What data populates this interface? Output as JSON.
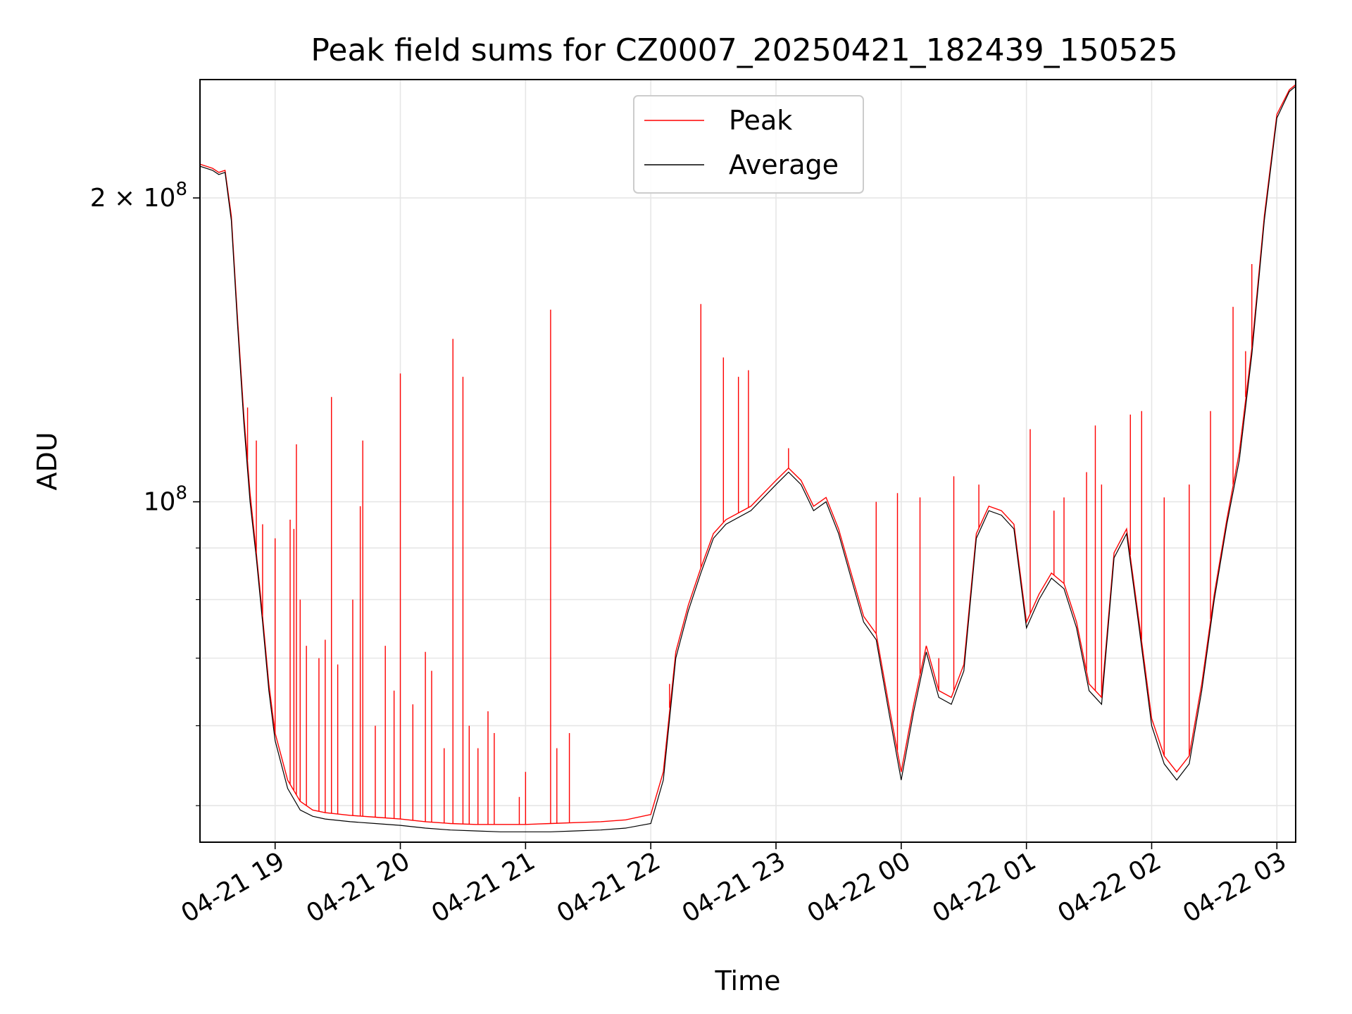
{
  "chart_data": {
    "type": "line",
    "title": "Peak field sums for CZ0007_20250421_182439_150525",
    "xlabel": "Time",
    "ylabel": "ADU",
    "yscale": "log",
    "ylim": [
      46000000,
      262000000
    ],
    "xlim_hours": [
      -0.6,
      8.15
    ],
    "x_origin": "04-21 19:00",
    "grid": true,
    "legend_position": "top-center",
    "x_ticks": [
      {
        "h": 0,
        "label": "04-21 19"
      },
      {
        "h": 1,
        "label": "04-21 20"
      },
      {
        "h": 2,
        "label": "04-21 21"
      },
      {
        "h": 3,
        "label": "04-21 22"
      },
      {
        "h": 4,
        "label": "04-21 23"
      },
      {
        "h": 5,
        "label": "04-22 00"
      },
      {
        "h": 6,
        "label": "04-22 01"
      },
      {
        "h": 7,
        "label": "04-22 02"
      },
      {
        "h": 8,
        "label": "04-22 03"
      }
    ],
    "y_ticks": [
      {
        "value": 100000000,
        "base": "10",
        "exp": "8"
      },
      {
        "value": 200000000,
        "base": "2 × 10",
        "exp": "8"
      }
    ],
    "y_minor_ticks": [
      50000000,
      60000000,
      70000000,
      80000000,
      90000000
    ],
    "series": [
      {
        "name": "Average",
        "color": "#000000",
        "x_hours": [
          -0.6,
          -0.5,
          -0.45,
          -0.4,
          -0.35,
          -0.3,
          -0.25,
          -0.2,
          -0.15,
          -0.1,
          -0.05,
          0,
          0.1,
          0.2,
          0.3,
          0.4,
          0.6,
          0.8,
          1.0,
          1.2,
          1.4,
          1.6,
          1.8,
          2.0,
          2.2,
          2.4,
          2.6,
          2.8,
          3.0,
          3.1,
          3.2,
          3.3,
          3.4,
          3.5,
          3.6,
          3.8,
          4.0,
          4.1,
          4.2,
          4.3,
          4.4,
          4.5,
          4.6,
          4.7,
          4.8,
          4.9,
          5.0,
          5.1,
          5.2,
          5.3,
          5.4,
          5.5,
          5.6,
          5.7,
          5.8,
          5.9,
          6.0,
          6.1,
          6.2,
          6.3,
          6.4,
          6.5,
          6.6,
          6.7,
          6.8,
          6.9,
          7.0,
          7.1,
          7.2,
          7.3,
          7.4,
          7.5,
          7.6,
          7.7,
          7.8,
          7.9,
          8.0,
          8.1,
          8.15
        ],
        "values": [
          215000000,
          213000000,
          211000000,
          212000000,
          190000000,
          150000000,
          120000000,
          100000000,
          88000000,
          76000000,
          65000000,
          58000000,
          52000000,
          49500000,
          48800000,
          48500000,
          48200000,
          48000000,
          47800000,
          47500000,
          47300000,
          47200000,
          47100000,
          47100000,
          47100000,
          47200000,
          47300000,
          47500000,
          48000000,
          53000000,
          70000000,
          78000000,
          85000000,
          92000000,
          95000000,
          98000000,
          104000000,
          107000000,
          104000000,
          98000000,
          100000000,
          93000000,
          84000000,
          76000000,
          73000000,
          62000000,
          53000000,
          62000000,
          71000000,
          64000000,
          63000000,
          68000000,
          92000000,
          98000000,
          97000000,
          94000000,
          75000000,
          80000000,
          84000000,
          82000000,
          75000000,
          65000000,
          63000000,
          88000000,
          93000000,
          75000000,
          60000000,
          55000000,
          53000000,
          55000000,
          65000000,
          80000000,
          95000000,
          110000000,
          140000000,
          190000000,
          240000000,
          255000000,
          258000000
        ]
      },
      {
        "name": "Peak",
        "color": "#ff0000",
        "x_hours": [
          -0.6,
          -0.5,
          -0.45,
          -0.4,
          -0.35,
          -0.3,
          -0.25,
          -0.2,
          -0.15,
          -0.1,
          -0.05,
          0,
          0.1,
          0.2,
          0.3,
          0.4,
          0.6,
          0.8,
          1.0,
          1.2,
          1.4,
          1.6,
          1.8,
          2.0,
          2.2,
          2.4,
          2.6,
          2.8,
          3.0,
          3.1,
          3.2,
          3.3,
          3.4,
          3.5,
          3.6,
          3.8,
          4.0,
          4.1,
          4.2,
          4.3,
          4.4,
          4.5,
          4.6,
          4.7,
          4.8,
          4.9,
          5.0,
          5.1,
          5.2,
          5.3,
          5.4,
          5.5,
          5.6,
          5.7,
          5.8,
          5.9,
          6.0,
          6.1,
          6.2,
          6.3,
          6.4,
          6.5,
          6.6,
          6.7,
          6.8,
          6.9,
          7.0,
          7.1,
          7.2,
          7.3,
          7.4,
          7.5,
          7.6,
          7.7,
          7.8,
          7.9,
          8.0,
          8.1,
          8.15
        ],
        "values": [
          216000000,
          214000000,
          212000000,
          213000000,
          192000000,
          152000000,
          122000000,
          102000000,
          89000000,
          77000000,
          66000000,
          59000000,
          53000000,
          50500000,
          49500000,
          49200000,
          48900000,
          48700000,
          48500000,
          48200000,
          48000000,
          47900000,
          47900000,
          47900000,
          48000000,
          48100000,
          48200000,
          48400000,
          49000000,
          54000000,
          71000000,
          79000000,
          86000000,
          93000000,
          96000000,
          99000000,
          105000000,
          108000000,
          105000000,
          99000000,
          101000000,
          94000000,
          85000000,
          77000000,
          74000000,
          63000000,
          54000000,
          63000000,
          72000000,
          65000000,
          64000000,
          69000000,
          93000000,
          99000000,
          98000000,
          95000000,
          76000000,
          81000000,
          85000000,
          83000000,
          76000000,
          66000000,
          64000000,
          89000000,
          94000000,
          76000000,
          61000000,
          56000000,
          54000000,
          56000000,
          66000000,
          81000000,
          96000000,
          112000000,
          142000000,
          192000000,
          242000000,
          256000000,
          259000000
        ],
        "spikes": [
          {
            "h": -0.22,
            "v": 124000000
          },
          {
            "h": -0.15,
            "v": 115000000
          },
          {
            "h": -0.1,
            "v": 95000000
          },
          {
            "h": 0.0,
            "v": 92000000
          },
          {
            "h": 0.12,
            "v": 96000000
          },
          {
            "h": 0.15,
            "v": 94000000
          },
          {
            "h": 0.17,
            "v": 114000000
          },
          {
            "h": 0.2,
            "v": 80000000
          },
          {
            "h": 0.25,
            "v": 72000000
          },
          {
            "h": 0.35,
            "v": 70000000
          },
          {
            "h": 0.4,
            "v": 73000000
          },
          {
            "h": 0.45,
            "v": 127000000
          },
          {
            "h": 0.5,
            "v": 69000000
          },
          {
            "h": 0.62,
            "v": 80000000
          },
          {
            "h": 0.68,
            "v": 99000000
          },
          {
            "h": 0.7,
            "v": 115000000
          },
          {
            "h": 0.8,
            "v": 60000000
          },
          {
            "h": 0.88,
            "v": 72000000
          },
          {
            "h": 0.95,
            "v": 65000000
          },
          {
            "h": 1.0,
            "v": 134000000
          },
          {
            "h": 1.1,
            "v": 63000000
          },
          {
            "h": 1.2,
            "v": 71000000
          },
          {
            "h": 1.25,
            "v": 68000000
          },
          {
            "h": 1.35,
            "v": 57000000
          },
          {
            "h": 1.42,
            "v": 145000000
          },
          {
            "h": 1.5,
            "v": 133000000
          },
          {
            "h": 1.55,
            "v": 60000000
          },
          {
            "h": 1.62,
            "v": 57000000
          },
          {
            "h": 1.7,
            "v": 62000000
          },
          {
            "h": 1.75,
            "v": 59000000
          },
          {
            "h": 2.2,
            "v": 155000000
          },
          {
            "h": 2.25,
            "v": 57000000
          },
          {
            "h": 2.35,
            "v": 59000000
          },
          {
            "h": 2.0,
            "v": 54000000
          },
          {
            "h": 1.95,
            "v": 51000000
          },
          {
            "h": 3.15,
            "v": 66000000
          },
          {
            "h": 3.4,
            "v": 157000000
          },
          {
            "h": 3.58,
            "v": 139000000
          },
          {
            "h": 3.7,
            "v": 133000000
          },
          {
            "h": 3.78,
            "v": 135000000
          },
          {
            "h": 4.1,
            "v": 113000000
          },
          {
            "h": 4.8,
            "v": 100000000
          },
          {
            "h": 4.97,
            "v": 102000000
          },
          {
            "h": 5.15,
            "v": 101000000
          },
          {
            "h": 5.3,
            "v": 70000000
          },
          {
            "h": 5.42,
            "v": 106000000
          },
          {
            "h": 5.62,
            "v": 104000000
          },
          {
            "h": 6.03,
            "v": 118000000
          },
          {
            "h": 6.22,
            "v": 98000000
          },
          {
            "h": 6.3,
            "v": 101000000
          },
          {
            "h": 6.48,
            "v": 107000000
          },
          {
            "h": 6.55,
            "v": 119000000
          },
          {
            "h": 6.6,
            "v": 104000000
          },
          {
            "h": 6.83,
            "v": 122000000
          },
          {
            "h": 6.92,
            "v": 123000000
          },
          {
            "h": 7.1,
            "v": 101000000
          },
          {
            "h": 7.3,
            "v": 104000000
          },
          {
            "h": 7.47,
            "v": 123000000
          },
          {
            "h": 7.65,
            "v": 156000000
          },
          {
            "h": 7.75,
            "v": 141000000
          },
          {
            "h": 7.8,
            "v": 172000000
          },
          {
            "h": 7.72,
            "v": 118000000
          }
        ]
      }
    ]
  }
}
